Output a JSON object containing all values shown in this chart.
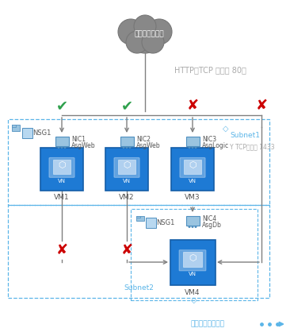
{
  "background_color": "#ffffff",
  "cloud_text": "インターネット",
  "http_label": "HTTP（TCP ポート 80）",
  "subnet1_label": "Subnet1",
  "subnet2_label": "Subnet2",
  "vnet_label": "仮想ネットワーク",
  "tcp_label": "Y TCPポート 1433",
  "vm_labels": [
    "VM1",
    "VM2",
    "VM3",
    "VM4"
  ],
  "nic_labels_line1": [
    "NIC1",
    "NIC2",
    "NIC3",
    "NIC4"
  ],
  "nic_labels_line2": [
    "AsgWeb",
    "AsgWeb",
    "AsgLogic",
    "AsgDb"
  ],
  "nsg_label": "NSG1",
  "vm_color": "#1e7ad4",
  "vm_border": "#145ea8",
  "arrow_color": "#808080",
  "dashed_color": "#5bb5e8",
  "check_color": "#2ea04c",
  "cross_color": "#cc0000",
  "text_color": "#999999",
  "dark_text": "#555555"
}
